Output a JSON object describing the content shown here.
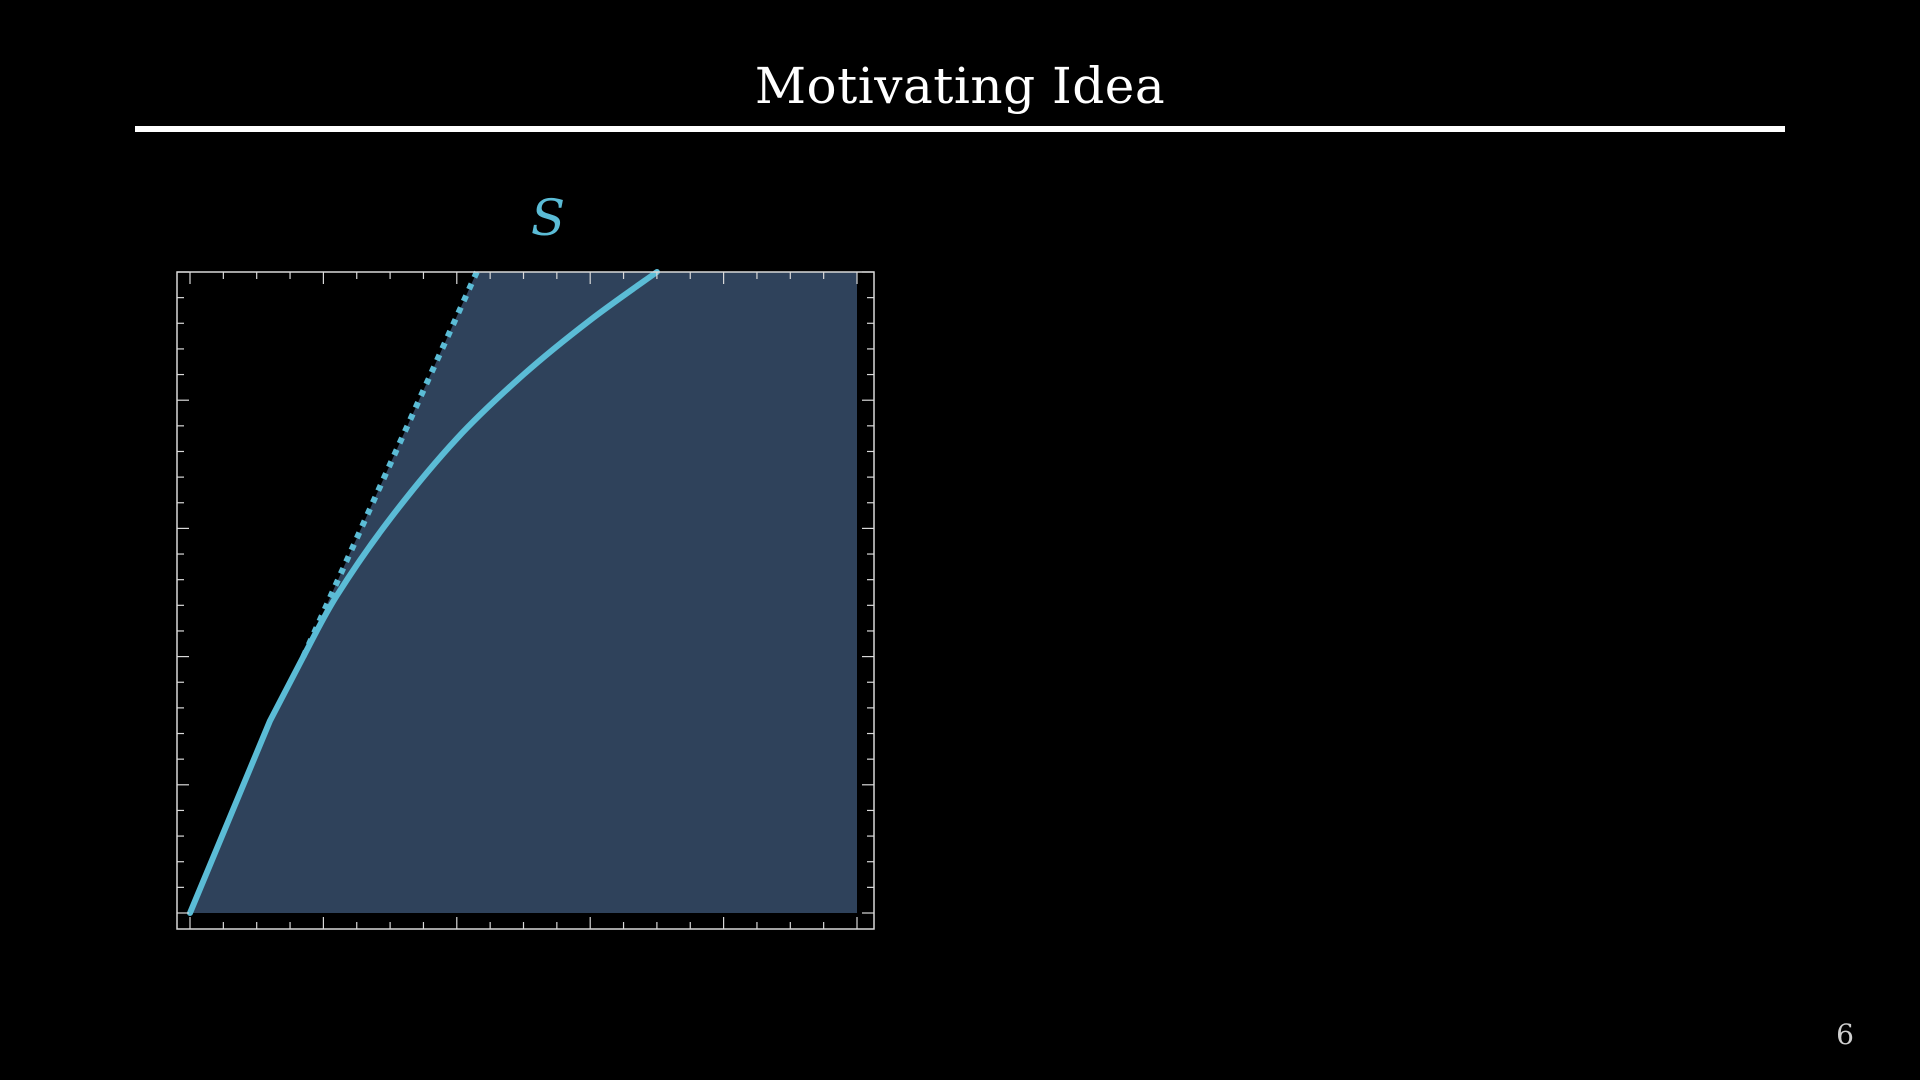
{
  "slide": {
    "title": "Motivating Idea",
    "page_number": "6"
  },
  "colors": {
    "background": "#000000",
    "accent": "#5bbcd6",
    "region_fill": "#2f425b",
    "frame": "#d9d9d9",
    "text": "#ffffff"
  },
  "chart_data": {
    "type": "area",
    "set_label": "S",
    "xlim": [
      0,
      10
    ],
    "ylim": [
      0,
      10
    ],
    "grid": false,
    "legend": "none",
    "ticks": {
      "x_major": [
        0,
        2,
        4,
        6,
        8,
        10
      ],
      "x_minor_step": 0.5,
      "y_major": [
        0,
        2,
        4,
        6,
        8,
        10
      ],
      "y_minor_step": 0.4,
      "labels_shown": false
    },
    "region": {
      "x_max": 10,
      "boundary_x": [
        0,
        0.6,
        1.2,
        1.7,
        2.2,
        3.0,
        4.0,
        5.0,
        6.0,
        7.0
      ],
      "boundary_y": [
        0,
        1.5,
        3.0,
        4.0,
        4.95,
        6.15,
        7.4,
        8.4,
        9.25,
        10.0
      ]
    },
    "series": [
      {
        "style": "solid",
        "x": [
          0,
          0.6,
          1.2,
          1.7,
          2.2,
          3.0,
          4.0,
          5.0,
          6.0,
          7.0
        ],
        "y": [
          0,
          1.5,
          3.0,
          4.0,
          4.95,
          6.15,
          7.4,
          8.4,
          9.25,
          10.0
        ]
      },
      {
        "style": "dotted",
        "x": [
          1.7,
          4.3
        ],
        "y": [
          4.0,
          10.0
        ]
      }
    ]
  }
}
